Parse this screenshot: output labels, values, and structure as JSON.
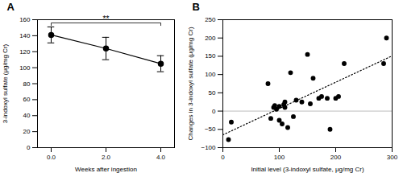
{
  "chart_data": [
    {
      "type": "line",
      "title": "A",
      "x": [
        0,
        2,
        4
      ],
      "values": [
        141,
        124,
        105
      ],
      "errors": [
        10,
        14,
        10
      ],
      "color": "#000000",
      "marker": "circle",
      "line_style": "solid",
      "xlabel": "Weeks after ingestion",
      "ylabel": "3-indoxyl sulfate (μg/mg Cr)",
      "xlim": [
        -0.5,
        4.5
      ],
      "xticks": [
        0,
        2,
        4
      ],
      "ylim": [
        0,
        160
      ],
      "yticks": [
        0,
        20,
        40,
        60,
        80,
        100,
        120,
        140,
        160
      ],
      "annotations": [
        {
          "text": "**",
          "x": [
            0,
            4
          ],
          "y": 156
        }
      ]
    },
    {
      "type": "scatter",
      "title": "B",
      "xlabel": "Initial level (3-indoxyl sulfate, μg/mg Cr)",
      "ylabel": "Changes in 3-indoxyl sulfate (μg/mg Cr)",
      "xlim": [
        0,
        300
      ],
      "xticks": [
        0,
        100,
        200,
        300
      ],
      "ylim": [
        -100,
        250
      ],
      "yticks": [
        -100,
        -50,
        0,
        50,
        100,
        150,
        200,
        250
      ],
      "series": [
        {
          "type": "scatter",
          "color": "#000000",
          "marker": "circle",
          "x": [
            10,
            15,
            80,
            85,
            90,
            92,
            95,
            100,
            100,
            105,
            108,
            110,
            110,
            115,
            120,
            125,
            130,
            140,
            150,
            155,
            160,
            170,
            175,
            185,
            190,
            200,
            205,
            215,
            285,
            290
          ],
          "values": [
            -78,
            -30,
            75,
            -20,
            10,
            15,
            5,
            13,
            -25,
            -35,
            18,
            10,
            25,
            -45,
            105,
            -15,
            30,
            25,
            155,
            20,
            90,
            35,
            40,
            35,
            -50,
            35,
            40,
            130,
            130,
            200
          ]
        },
        {
          "type": "line",
          "color": "#000000",
          "line_style": "dotted",
          "x": [
            0,
            300
          ],
          "values": [
            -65,
            151
          ]
        },
        {
          "type": "line",
          "color": "#aaaaaa",
          "line_style": "solid",
          "x": [
            0,
            300
          ],
          "values": [
            0,
            0
          ]
        }
      ]
    }
  ]
}
